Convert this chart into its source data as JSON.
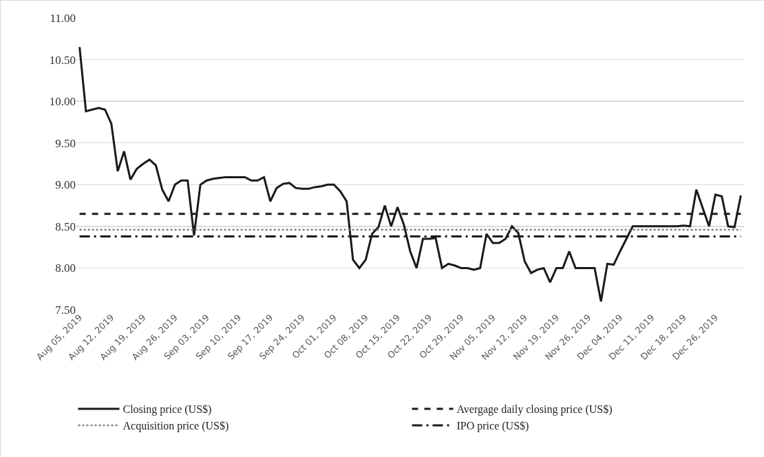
{
  "chart_data": {
    "type": "line",
    "categories": [
      "Aug 05, 2019",
      null,
      null,
      null,
      null,
      "Aug 12, 2019",
      null,
      null,
      null,
      null,
      "Aug 19, 2019",
      null,
      null,
      null,
      null,
      "Aug 26, 2019",
      null,
      null,
      null,
      null,
      "Sep 03, 2019",
      null,
      null,
      null,
      null,
      "Sep 10, 2019",
      null,
      null,
      null,
      null,
      "Sep 17, 2019",
      null,
      null,
      null,
      null,
      "Sep 24, 2019",
      null,
      null,
      null,
      null,
      "Oct 01, 2019",
      null,
      null,
      null,
      null,
      "Oct 08, 2019",
      null,
      null,
      null,
      null,
      "Oct 15, 2019",
      null,
      null,
      null,
      null,
      "Oct 22, 2019",
      null,
      null,
      null,
      null,
      "Oct 29, 2019",
      null,
      null,
      null,
      null,
      "Nov 05, 2019",
      null,
      null,
      null,
      null,
      "Nov 12, 2019",
      null,
      null,
      null,
      null,
      "Nov 19, 2019",
      null,
      null,
      null,
      null,
      "Nov 26, 2019",
      null,
      null,
      null,
      null,
      "Dec 04, 2019",
      null,
      null,
      null,
      null,
      "Dec 11, 2019",
      null,
      null,
      null,
      null,
      "Dec 18, 2019",
      null,
      null,
      null,
      null,
      "Dec 26, 2019",
      null,
      null,
      null,
      null
    ],
    "series": [
      {
        "name": "Closing price (US$)",
        "color": "#1a1a1a",
        "line_style": "solid",
        "values": [
          10.65,
          9.88,
          9.9,
          9.92,
          9.9,
          9.73,
          9.16,
          9.4,
          9.06,
          9.19,
          9.25,
          9.3,
          9.23,
          8.94,
          8.8,
          9.0,
          9.05,
          9.05,
          8.39,
          9.0,
          9.05,
          9.07,
          9.08,
          9.09,
          9.09,
          9.09,
          9.09,
          9.05,
          9.05,
          9.09,
          8.8,
          8.96,
          9.01,
          9.02,
          8.96,
          8.95,
          8.95,
          8.97,
          8.98,
          9.0,
          9.0,
          8.92,
          8.8,
          8.1,
          8.0,
          8.1,
          8.41,
          8.49,
          8.75,
          8.5,
          8.73,
          8.52,
          8.2,
          8.0,
          8.35,
          8.35,
          8.36,
          8.0,
          8.05,
          8.03,
          8.0,
          8.0,
          7.98,
          8.0,
          8.41,
          8.3,
          8.3,
          8.35,
          8.5,
          8.42,
          8.08,
          7.94,
          7.98,
          8.0,
          7.83,
          8.0,
          8.0,
          8.2,
          8.0,
          8.0,
          8.0,
          8.0,
          7.6,
          8.05,
          8.04,
          8.2,
          8.35,
          8.5,
          8.5,
          8.5,
          8.5,
          8.5,
          8.5,
          8.5,
          8.5,
          8.51,
          8.5,
          8.94,
          8.72,
          8.5,
          8.88,
          8.86,
          8.5,
          8.49,
          8.87
        ]
      }
    ],
    "ref_lines": [
      {
        "axis": "y",
        "value": 8.65,
        "label": "Avergage daily closing price (US$)",
        "color": "#1a1a1a",
        "line_style": "dashed"
      },
      {
        "axis": "y",
        "value": 8.46,
        "label": "Acquisition price (US$)",
        "color": "#808080",
        "line_style": "dotted"
      },
      {
        "axis": "y",
        "value": 8.38,
        "label": "IPO price (US$)",
        "color": "#1a1a1a",
        "line_style": "dashdot"
      }
    ],
    "ylim": [
      7.5,
      11
    ],
    "yticks": [
      {
        "value": 7.5,
        "label": "7.50"
      },
      {
        "value": 8,
        "label": "8.00"
      },
      {
        "value": 8.5,
        "label": "8.50"
      },
      {
        "value": 9,
        "label": "9.00"
      },
      {
        "value": 9.5,
        "label": "9.50"
      },
      {
        "value": 10,
        "label": "10.00"
      },
      {
        "value": 10.5,
        "label": "10.50"
      },
      {
        "value": 11,
        "label": "11.00"
      }
    ],
    "grid": "y",
    "legend": "bottom",
    "marker": "none"
  }
}
